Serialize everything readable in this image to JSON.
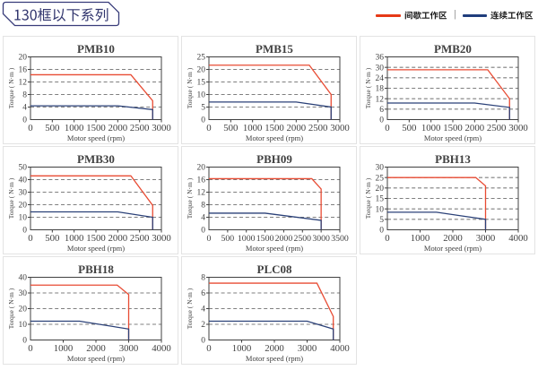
{
  "header": {
    "title": "130框以下系列",
    "legend": {
      "items": [
        {
          "id": "intermittent",
          "label": "间歇工作区",
          "color": "#e63917"
        },
        {
          "id": "continuous",
          "label": "连续工作区",
          "color": "#1f3d7c"
        }
      ],
      "divider": "|"
    }
  },
  "axes": {
    "x_label": "Motor speed (rpm)",
    "y_label": "Torque ( N·m )"
  },
  "colors": {
    "intermittent_line": "#e84b33",
    "continuous_line": "#2b4178",
    "grid_line": "#7f7f7f",
    "plot_border": "#404040",
    "axis_label_blue": "#4d7ab8"
  },
  "chart_data": [
    {
      "type": "line",
      "title": "PMB10",
      "xlabel": "Motor speed (rpm)",
      "ylabel": "Torque ( N·m )",
      "xlim": [
        0,
        3000
      ],
      "ylim": [
        0,
        20
      ],
      "xticks": [
        0,
        500,
        1000,
        1500,
        2000,
        2500,
        3000
      ],
      "yticks": [
        0,
        4,
        8,
        12,
        16,
        20
      ],
      "series": [
        {
          "name": "间歇工作区",
          "color": "#e84b33",
          "points": [
            [
              0,
              14.3
            ],
            [
              2300,
              14.3
            ],
            [
              2800,
              6
            ],
            [
              2800,
              0
            ]
          ]
        },
        {
          "name": "连续工作区",
          "color": "#2b4178",
          "points": [
            [
              0,
              4.4
            ],
            [
              2000,
              4.4
            ],
            [
              2800,
              3.2
            ],
            [
              2800,
              0
            ]
          ]
        }
      ]
    },
    {
      "type": "line",
      "title": "PMB15",
      "xlabel": "Motor speed (rpm)",
      "ylabel": "Torque ( N·m )",
      "xlim": [
        0,
        3000
      ],
      "ylim": [
        0,
        25
      ],
      "xticks": [
        0,
        500,
        1000,
        1500,
        2000,
        2500,
        3000
      ],
      "yticks": [
        0,
        5,
        10,
        15,
        20,
        25
      ],
      "series": [
        {
          "name": "间歇工作区",
          "color": "#e84b33",
          "points": [
            [
              0,
              21.7
            ],
            [
              2300,
              21.7
            ],
            [
              2800,
              10
            ],
            [
              2800,
              0
            ]
          ]
        },
        {
          "name": "连续工作区",
          "color": "#2b4178",
          "points": [
            [
              0,
              7
            ],
            [
              2000,
              7
            ],
            [
              2800,
              5
            ],
            [
              2800,
              0
            ]
          ]
        }
      ]
    },
    {
      "type": "line",
      "title": "PMB20",
      "xlabel": "Motor speed (rpm)",
      "ylabel": "Torque ( N·m )",
      "xlim": [
        0,
        3000
      ],
      "ylim": [
        0,
        36
      ],
      "xticks": [
        0,
        500,
        1000,
        1500,
        2000,
        2500,
        3000
      ],
      "yticks": [
        0,
        6,
        12,
        18,
        24,
        30,
        36
      ],
      "series": [
        {
          "name": "间歇工作区",
          "color": "#e84b33",
          "points": [
            [
              0,
              28.6
            ],
            [
              2300,
              28.6
            ],
            [
              2800,
              12
            ],
            [
              2800,
              0
            ]
          ]
        },
        {
          "name": "连续工作区",
          "color": "#2b4178",
          "points": [
            [
              0,
              9.5
            ],
            [
              2000,
              9.5
            ],
            [
              2800,
              7
            ],
            [
              2800,
              0
            ]
          ]
        }
      ]
    },
    {
      "type": "line",
      "title": "PMB30",
      "xlabel": "Motor speed (rpm)",
      "ylabel": "Torque ( N·m )",
      "xlim": [
        0,
        3000
      ],
      "ylim": [
        0,
        50
      ],
      "xticks": [
        0,
        500,
        1000,
        1500,
        2000,
        2500,
        3000
      ],
      "yticks": [
        0,
        10,
        20,
        30,
        40,
        50
      ],
      "series": [
        {
          "name": "间歇工作区",
          "color": "#e84b33",
          "points": [
            [
              0,
              43
            ],
            [
              2300,
              43
            ],
            [
              2800,
              19.5
            ],
            [
              2800,
              0
            ]
          ]
        },
        {
          "name": "连续工作区",
          "color": "#2b4178",
          "points": [
            [
              0,
              14.3
            ],
            [
              2000,
              14.3
            ],
            [
              2800,
              10
            ],
            [
              2800,
              0
            ]
          ]
        }
      ]
    },
    {
      "type": "line",
      "title": "PBH09",
      "xlabel": "Motor speed (rpm)",
      "ylabel": "Torque ( N·m )",
      "xlim": [
        0,
        3500
      ],
      "ylim": [
        0,
        20
      ],
      "xticks": [
        0,
        500,
        1000,
        1500,
        2000,
        2500,
        3000,
        3500
      ],
      "yticks": [
        0,
        4,
        8,
        12,
        16,
        20
      ],
      "series": [
        {
          "name": "间歇工作区",
          "color": "#e84b33",
          "points": [
            [
              0,
              16.3
            ],
            [
              2750,
              16.3
            ],
            [
              3000,
              13
            ],
            [
              3000,
              0
            ]
          ]
        },
        {
          "name": "连续工作区",
          "color": "#2b4178",
          "points": [
            [
              0,
              5.3
            ],
            [
              1500,
              5.3
            ],
            [
              3000,
              3
            ],
            [
              3000,
              0
            ]
          ]
        }
      ]
    },
    {
      "type": "line",
      "title": "PBH13",
      "xlabel": "Motor speed (rpm)",
      "ylabel": "Torque ( N·m )",
      "xlim": [
        0,
        4000
      ],
      "ylim": [
        0,
        30
      ],
      "xticks": [
        0,
        1000,
        2000,
        3000,
        4000
      ],
      "yticks": [
        0,
        5,
        10,
        15,
        20,
        25,
        30
      ],
      "series": [
        {
          "name": "间歇工作区",
          "color": "#e84b33",
          "points": [
            [
              0,
              25
            ],
            [
              2700,
              25
            ],
            [
              3000,
              21
            ],
            [
              3000,
              0
            ]
          ]
        },
        {
          "name": "连续工作区",
          "color": "#2b4178",
          "points": [
            [
              0,
              8.4
            ],
            [
              1500,
              8.4
            ],
            [
              3000,
              5
            ],
            [
              3000,
              0
            ]
          ]
        }
      ]
    },
    {
      "type": "line",
      "title": "PBH18",
      "xlabel": "Motor speed (rpm)",
      "ylabel": "Torque ( N·m )",
      "xlim": [
        0,
        4000
      ],
      "ylim": [
        0,
        40
      ],
      "xticks": [
        0,
        1000,
        2000,
        3000,
        4000
      ],
      "yticks": [
        0,
        10,
        20,
        30,
        40
      ],
      "series": [
        {
          "name": "间歇工作区",
          "color": "#e84b33",
          "points": [
            [
              0,
              35
            ],
            [
              2650,
              35
            ],
            [
              3000,
              29
            ],
            [
              3000,
              0
            ]
          ]
        },
        {
          "name": "连续工作区",
          "color": "#2b4178",
          "points": [
            [
              0,
              12
            ],
            [
              1500,
              12
            ],
            [
              3000,
              7
            ],
            [
              3000,
              0
            ]
          ]
        }
      ]
    },
    {
      "type": "line",
      "title": "PLC08",
      "xlabel": "Motor speed (rpm)",
      "ylabel": "Torque ( N·m )",
      "xlim": [
        0,
        4000
      ],
      "ylim": [
        0,
        8
      ],
      "xticks": [
        0,
        1000,
        2000,
        3000,
        4000
      ],
      "yticks": [
        0,
        2,
        4,
        6,
        8
      ],
      "series": [
        {
          "name": "间歇工作区",
          "color": "#e84b33",
          "points": [
            [
              0,
              7.25
            ],
            [
              3300,
              7.25
            ],
            [
              3800,
              3
            ],
            [
              3800,
              0
            ]
          ]
        },
        {
          "name": "连续工作区",
          "color": "#2b4178",
          "points": [
            [
              0,
              2.4
            ],
            [
              3000,
              2.4
            ],
            [
              3800,
              1.4
            ],
            [
              3800,
              0
            ]
          ]
        }
      ]
    }
  ]
}
